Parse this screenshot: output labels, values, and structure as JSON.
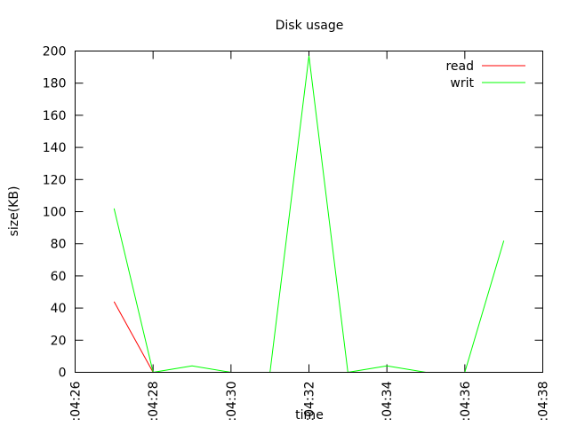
{
  "chart_data": {
    "type": "line",
    "title": "Disk usage",
    "xlabel": "time",
    "ylabel": "size(KB)",
    "x_ticks": [
      ":04:26",
      ":04:28",
      ":04:30",
      ":04:32",
      ":04:34",
      ":04:36",
      ":04:38"
    ],
    "y_ticks": [
      "0",
      "20",
      "40",
      "60",
      "80",
      "100",
      "120",
      "140",
      "160",
      "180",
      "200"
    ],
    "xlim": [
      "04:26",
      "04:38"
    ],
    "ylim": [
      0,
      200
    ],
    "legend_position": "top-right",
    "series": [
      {
        "name": "read",
        "color": "#ff0000",
        "x": [
          "04:27",
          "04:28"
        ],
        "values": [
          44,
          0
        ]
      },
      {
        "name": "writ",
        "color": "#00ff00",
        "x": [
          "04:27",
          "04:28",
          "04:29",
          "04:30",
          "04:31",
          "04:32",
          "04:33",
          "04:34",
          "04:35",
          "04:36",
          "04:37"
        ],
        "values": [
          102,
          0,
          4,
          0,
          0,
          197,
          0,
          4,
          0,
          0,
          82
        ]
      }
    ]
  }
}
